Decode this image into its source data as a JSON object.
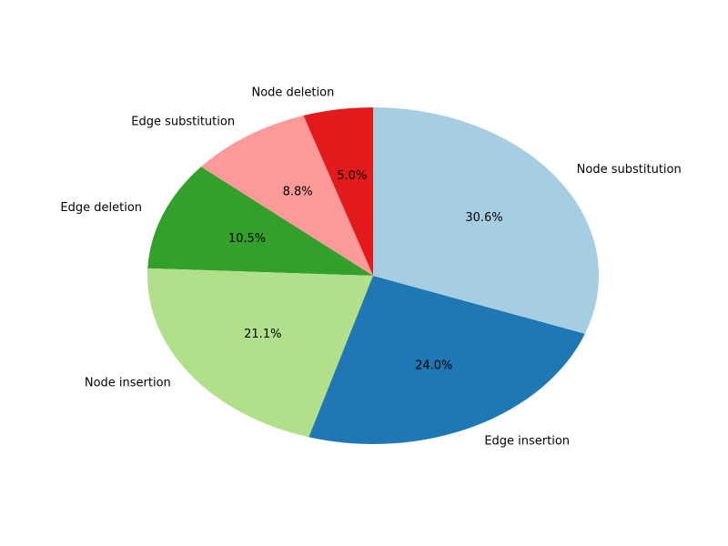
{
  "chart_data": {
    "type": "pie",
    "title": "",
    "start_angle_deg": 90,
    "direction": "counterclockwise",
    "slices": [
      {
        "label": "Node deletion",
        "value": 5.0,
        "pct_text": "5.0%",
        "color": "#e31a1c"
      },
      {
        "label": "Edge substitution",
        "value": 8.8,
        "pct_text": "8.8%",
        "color": "#fb9a99"
      },
      {
        "label": "Edge deletion",
        "value": 10.5,
        "pct_text": "10.5%",
        "color": "#33a02c"
      },
      {
        "label": "Node insertion",
        "value": 21.1,
        "pct_text": "21.1%",
        "color": "#b2df8a"
      },
      {
        "label": "Edge insertion",
        "value": 24.0,
        "pct_text": "24.0%",
        "color": "#1f78b4"
      },
      {
        "label": "Node substitution",
        "value": 30.6,
        "pct_text": "30.6%",
        "color": "#a6cee3"
      }
    ]
  }
}
